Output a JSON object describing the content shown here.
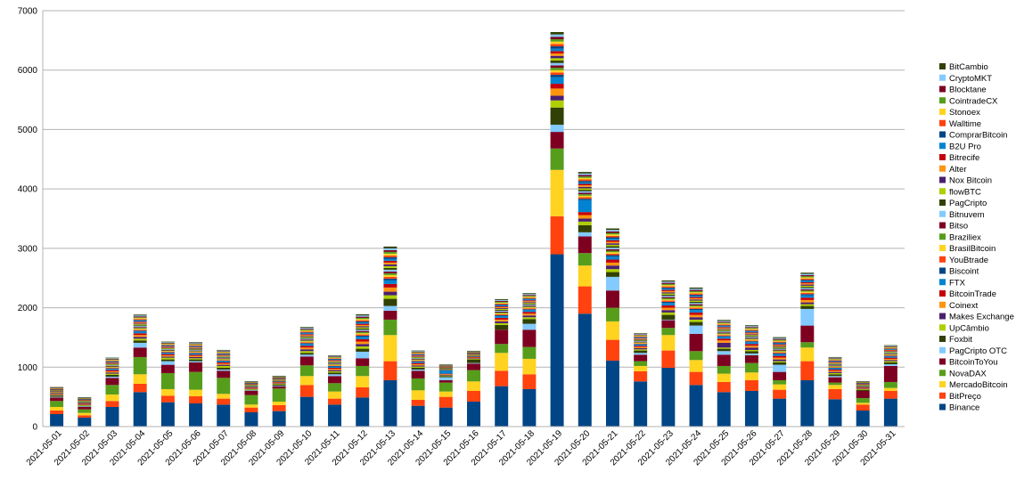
{
  "chart_data": {
    "type": "bar",
    "stacked": true,
    "title": "",
    "xlabel": "",
    "ylabel": "",
    "ylim": [
      0,
      7000
    ],
    "yticks": [
      0,
      1000,
      2000,
      3000,
      4000,
      5000,
      6000,
      7000
    ],
    "grid": "horizontal",
    "legend_position": "right",
    "categories": [
      "2021-05-01",
      "2021-05-02",
      "2021-05-03",
      "2021-05-04",
      "2021-05-05",
      "2021-05-06",
      "2021-05-07",
      "2021-05-08",
      "2021-05-09",
      "2021-05-10",
      "2021-05-11",
      "2021-05-12",
      "2021-05-13",
      "2021-05-14",
      "2021-05-15",
      "2021-05-16",
      "2021-05-17",
      "2021-05-18",
      "2021-05-19",
      "2021-05-20",
      "2021-05-21",
      "2021-05-22",
      "2021-05-23",
      "2021-05-24",
      "2021-05-25",
      "2021-05-26",
      "2021-05-27",
      "2021-05-28",
      "2021-05-29",
      "2021-05-30",
      "2021-05-31"
    ],
    "series": [
      {
        "name": "Binance",
        "color": "#004586",
        "values": [
          210,
          150,
          330,
          580,
          410,
          390,
          370,
          240,
          260,
          500,
          370,
          490,
          780,
          350,
          320,
          420,
          680,
          630,
          2900,
          1900,
          1110,
          760,
          990,
          700,
          580,
          600,
          470,
          780,
          460,
          270,
          470
        ]
      },
      {
        "name": "BitPreço",
        "color": "#ff420e",
        "values": [
          60,
          40,
          100,
          140,
          110,
          120,
          100,
          80,
          100,
          200,
          100,
          170,
          320,
          100,
          180,
          180,
          260,
          250,
          640,
          460,
          350,
          170,
          290,
          220,
          170,
          180,
          150,
          320,
          170,
          100,
          130
        ]
      },
      {
        "name": "MercadoBitcoin",
        "color": "#ffd320",
        "values": [
          60,
          40,
          110,
          160,
          110,
          110,
          80,
          50,
          60,
          150,
          120,
          190,
          440,
          160,
          90,
          160,
          300,
          260,
          780,
          350,
          310,
          90,
          260,
          200,
          140,
          130,
          90,
          230,
          70,
          30,
          50
        ]
      },
      {
        "name": "NovaDAX",
        "color": "#579d1c",
        "values": [
          100,
          60,
          160,
          290,
          270,
          300,
          270,
          160,
          220,
          180,
          140,
          170,
          260,
          200,
          150,
          190,
          150,
          200,
          360,
          210,
          230,
          80,
          120,
          150,
          130,
          160,
          70,
          90,
          40,
          80,
          100
        ]
      },
      {
        "name": "BitcoinToYou",
        "color": "#7e0021",
        "values": [
          60,
          40,
          120,
          160,
          140,
          160,
          120,
          70,
          40,
          150,
          120,
          130,
          150,
          130,
          40,
          110,
          240,
          290,
          280,
          280,
          290,
          110,
          130,
          290,
          190,
          130,
          140,
          280,
          90,
          120,
          270
        ]
      },
      {
        "name": "PagCripto OTC",
        "color": "#83caff",
        "values": [
          10,
          10,
          20,
          80,
          60,
          20,
          20,
          10,
          10,
          30,
          30,
          110,
          80,
          20,
          50,
          10,
          0,
          100,
          120,
          70,
          230,
          30,
          10,
          140,
          60,
          30,
          120,
          280,
          20,
          0,
          30
        ]
      },
      {
        "name": "Foxbit",
        "color": "#314004",
        "values": [
          20,
          10,
          30,
          40,
          30,
          30,
          30,
          10,
          20,
          30,
          30,
          50,
          120,
          30,
          20,
          60,
          80,
          80,
          290,
          120,
          80,
          40,
          80,
          60,
          40,
          40,
          40,
          50,
          30,
          20,
          30
        ]
      },
      {
        "name": "UpCâmbio",
        "color": "#aecf00",
        "values": [
          10,
          10,
          20,
          30,
          30,
          20,
          30,
          10,
          10,
          30,
          20,
          40,
          60,
          20,
          10,
          10,
          30,
          30,
          120,
          60,
          50,
          20,
          40,
          40,
          20,
          20,
          20,
          30,
          20,
          10,
          20
        ]
      },
      {
        "name": "Makes Exchange",
        "color": "#4b1f6f",
        "values": [
          10,
          10,
          20,
          30,
          20,
          20,
          20,
          10,
          10,
          30,
          20,
          40,
          60,
          20,
          10,
          10,
          30,
          30,
          80,
          50,
          60,
          20,
          40,
          40,
          80,
          40,
          30,
          30,
          20,
          10,
          20
        ]
      },
      {
        "name": "Coinext",
        "color": "#ff950e",
        "values": [
          10,
          10,
          20,
          30,
          20,
          20,
          20,
          10,
          10,
          30,
          20,
          40,
          70,
          20,
          10,
          10,
          30,
          30,
          120,
          60,
          50,
          20,
          40,
          40,
          40,
          30,
          30,
          40,
          20,
          10,
          20
        ]
      },
      {
        "name": "BitcoinTrade",
        "color": "#c5000b",
        "values": [
          10,
          10,
          20,
          30,
          20,
          20,
          20,
          10,
          10,
          30,
          20,
          40,
          60,
          20,
          10,
          10,
          30,
          30,
          80,
          50,
          50,
          20,
          40,
          40,
          30,
          30,
          30,
          40,
          20,
          10,
          20
        ]
      },
      {
        "name": "FTX",
        "color": "#0084d1",
        "values": [
          10,
          10,
          20,
          30,
          20,
          20,
          20,
          10,
          10,
          30,
          20,
          40,
          60,
          20,
          60,
          10,
          30,
          30,
          110,
          200,
          50,
          20,
          40,
          40,
          30,
          30,
          30,
          40,
          20,
          10,
          20
        ]
      },
      {
        "name": "Biscoint",
        "color": "#004586",
        "values": [
          5,
          5,
          10,
          15,
          10,
          10,
          10,
          5,
          5,
          15,
          10,
          20,
          30,
          10,
          5,
          5,
          15,
          15,
          40,
          25,
          25,
          10,
          20,
          20,
          15,
          15,
          15,
          20,
          10,
          5,
          10
        ]
      },
      {
        "name": "YouBtrade",
        "color": "#ff420e",
        "values": [
          5,
          5,
          10,
          15,
          10,
          10,
          10,
          5,
          5,
          15,
          10,
          20,
          30,
          10,
          5,
          5,
          15,
          15,
          40,
          25,
          25,
          10,
          20,
          20,
          15,
          15,
          15,
          20,
          10,
          5,
          10
        ]
      },
      {
        "name": "BrasilBitcoin",
        "color": "#ffd320",
        "values": [
          5,
          5,
          10,
          15,
          10,
          10,
          10,
          5,
          5,
          15,
          10,
          20,
          30,
          10,
          5,
          5,
          15,
          15,
          40,
          25,
          25,
          10,
          20,
          20,
          15,
          15,
          15,
          20,
          10,
          5,
          10
        ]
      },
      {
        "name": "Braziliex",
        "color": "#579d1c",
        "values": [
          5,
          5,
          10,
          15,
          10,
          10,
          10,
          5,
          5,
          15,
          10,
          20,
          30,
          10,
          5,
          5,
          15,
          15,
          40,
          25,
          25,
          10,
          20,
          20,
          15,
          15,
          15,
          20,
          10,
          5,
          10
        ]
      },
      {
        "name": "Bitso",
        "color": "#7e0021",
        "values": [
          5,
          5,
          10,
          15,
          10,
          10,
          10,
          5,
          5,
          15,
          10,
          20,
          30,
          10,
          5,
          5,
          15,
          15,
          40,
          25,
          25,
          10,
          20,
          20,
          15,
          15,
          15,
          20,
          10,
          5,
          10
        ]
      },
      {
        "name": "Bitnuvem",
        "color": "#83caff",
        "values": [
          5,
          5,
          10,
          15,
          10,
          10,
          10,
          5,
          5,
          15,
          10,
          20,
          30,
          10,
          5,
          5,
          15,
          15,
          40,
          25,
          25,
          10,
          20,
          20,
          15,
          15,
          15,
          20,
          10,
          5,
          10
        ]
      },
      {
        "name": "PagCripto",
        "color": "#314004",
        "values": [
          5,
          5,
          10,
          15,
          10,
          10,
          10,
          5,
          5,
          15,
          10,
          20,
          30,
          10,
          5,
          5,
          15,
          15,
          40,
          25,
          25,
          10,
          20,
          20,
          15,
          15,
          15,
          20,
          10,
          5,
          10
        ]
      },
      {
        "name": "flowBTC",
        "color": "#aecf00",
        "values": [
          5,
          5,
          10,
          15,
          10,
          10,
          10,
          5,
          5,
          15,
          10,
          20,
          30,
          10,
          5,
          5,
          15,
          15,
          40,
          25,
          25,
          10,
          20,
          20,
          15,
          15,
          15,
          20,
          10,
          5,
          10
        ]
      },
      {
        "name": "Nox Bitcoin",
        "color": "#4b1f6f",
        "values": [
          5,
          5,
          10,
          15,
          10,
          10,
          10,
          5,
          5,
          15,
          10,
          20,
          30,
          10,
          5,
          5,
          15,
          15,
          40,
          25,
          25,
          10,
          20,
          20,
          15,
          15,
          15,
          20,
          10,
          5,
          10
        ]
      },
      {
        "name": "Alter",
        "color": "#ff950e",
        "values": [
          5,
          5,
          10,
          15,
          10,
          10,
          10,
          5,
          5,
          15,
          10,
          20,
          30,
          10,
          5,
          5,
          15,
          15,
          40,
          25,
          25,
          10,
          20,
          20,
          15,
          15,
          15,
          20,
          10,
          5,
          10
        ]
      },
      {
        "name": "Bitrecife",
        "color": "#c5000b",
        "values": [
          5,
          5,
          10,
          15,
          10,
          10,
          10,
          5,
          5,
          15,
          10,
          20,
          30,
          10,
          5,
          5,
          15,
          15,
          40,
          25,
          25,
          10,
          20,
          20,
          15,
          15,
          15,
          20,
          10,
          5,
          10
        ]
      },
      {
        "name": "B2U Pro",
        "color": "#0084d1",
        "values": [
          5,
          5,
          10,
          15,
          10,
          10,
          10,
          5,
          5,
          15,
          10,
          20,
          30,
          10,
          5,
          5,
          15,
          15,
          40,
          25,
          25,
          10,
          20,
          20,
          15,
          15,
          15,
          20,
          10,
          5,
          10
        ]
      },
      {
        "name": "ComprarBitcoin",
        "color": "#004586",
        "values": [
          5,
          5,
          10,
          15,
          10,
          10,
          10,
          5,
          5,
          15,
          10,
          20,
          30,
          10,
          5,
          5,
          15,
          15,
          40,
          25,
          25,
          10,
          20,
          20,
          15,
          15,
          15,
          20,
          10,
          5,
          10
        ]
      },
      {
        "name": "Walltime",
        "color": "#ff420e",
        "values": [
          5,
          5,
          10,
          15,
          10,
          10,
          10,
          5,
          5,
          15,
          10,
          20,
          30,
          10,
          5,
          5,
          15,
          15,
          40,
          25,
          25,
          10,
          20,
          20,
          15,
          15,
          15,
          20,
          10,
          5,
          10
        ]
      },
      {
        "name": "Stonoex",
        "color": "#ffd320",
        "values": [
          5,
          5,
          10,
          15,
          10,
          10,
          10,
          5,
          5,
          15,
          10,
          20,
          30,
          10,
          5,
          5,
          15,
          15,
          40,
          25,
          25,
          10,
          20,
          20,
          15,
          15,
          15,
          20,
          10,
          5,
          10
        ]
      },
      {
        "name": "CointradeCX",
        "color": "#579d1c",
        "values": [
          5,
          5,
          10,
          15,
          10,
          10,
          10,
          5,
          5,
          15,
          10,
          20,
          30,
          10,
          5,
          5,
          15,
          15,
          40,
          25,
          25,
          10,
          20,
          20,
          15,
          15,
          15,
          20,
          10,
          5,
          10
        ]
      },
      {
        "name": "Blocktane",
        "color": "#7e0021",
        "values": [
          5,
          5,
          10,
          15,
          10,
          10,
          10,
          5,
          5,
          15,
          10,
          20,
          30,
          10,
          5,
          5,
          15,
          15,
          40,
          25,
          25,
          10,
          20,
          20,
          15,
          15,
          15,
          20,
          10,
          5,
          10
        ]
      },
      {
        "name": "CryptoMKT",
        "color": "#83caff",
        "values": [
          5,
          5,
          10,
          15,
          10,
          10,
          10,
          5,
          5,
          15,
          10,
          20,
          30,
          10,
          5,
          5,
          15,
          15,
          40,
          25,
          25,
          10,
          20,
          20,
          15,
          15,
          15,
          20,
          10,
          5,
          10
        ]
      },
      {
        "name": "BitCambio",
        "color": "#314004",
        "values": [
          5,
          5,
          10,
          15,
          10,
          10,
          10,
          5,
          5,
          15,
          10,
          20,
          30,
          10,
          5,
          5,
          15,
          15,
          40,
          25,
          25,
          10,
          20,
          20,
          15,
          15,
          15,
          20,
          10,
          5,
          10
        ]
      }
    ]
  }
}
